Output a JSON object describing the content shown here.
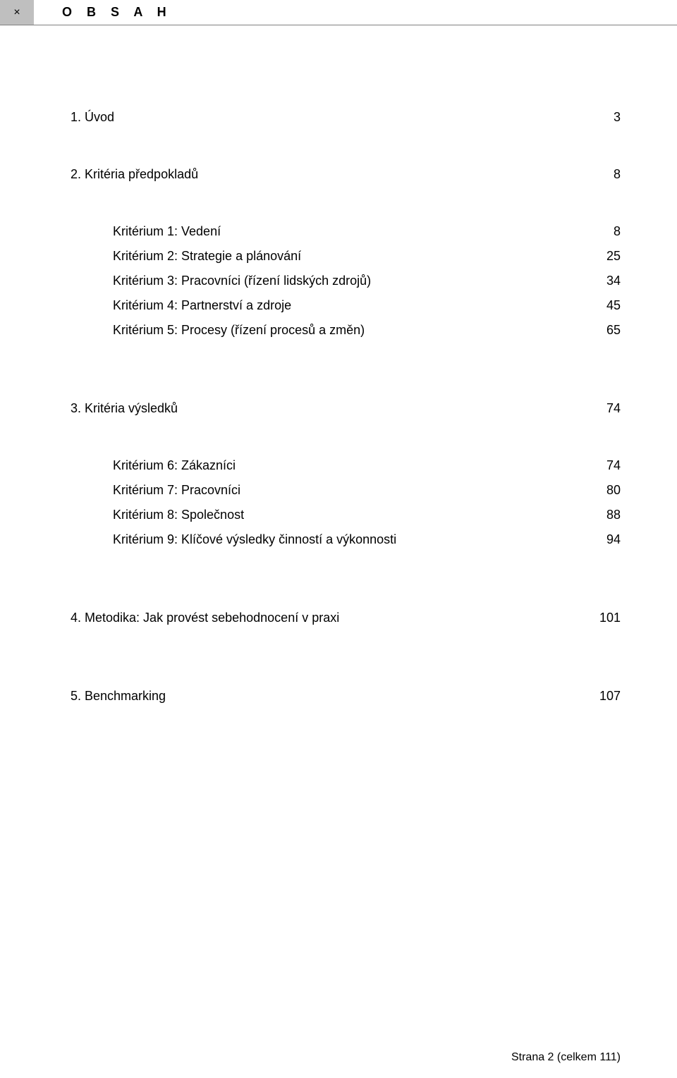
{
  "header": {
    "close_glyph": "×",
    "title": "O B S A H"
  },
  "sections": [
    {
      "label": "1.  Úvod",
      "page": "3"
    },
    {
      "label": "2.  Kritéria předpokladů",
      "page": "8",
      "items": [
        {
          "label": "Kritérium 1: Vedení",
          "page": "8"
        },
        {
          "label": "Kritérium 2: Strategie a plánování",
          "page": "25"
        },
        {
          "label": "Kritérium 3: Pracovníci (řízení lidských zdrojů)",
          "page": "34"
        },
        {
          "label": "Kritérium 4: Partnerství a zdroje",
          "page": "45"
        },
        {
          "label": "Kritérium 5: Procesy (řízení procesů a změn)",
          "page": "65"
        }
      ]
    },
    {
      "label": "3.  Kritéria výsledků",
      "page": "74",
      "items": [
        {
          "label": "Kritérium 6: Zákazníci",
          "page": "74"
        },
        {
          "label": "Kritérium 7: Pracovníci",
          "page": "80"
        },
        {
          "label": "Kritérium 8: Společnost",
          "page": "88"
        },
        {
          "label": "Kritérium 9: Klíčové výsledky činností a výkonnosti",
          "page": "94"
        }
      ]
    },
    {
      "label": "4.  Metodika: Jak provést sebehodnocení v praxi",
      "page": "101"
    },
    {
      "label": "5.  Benchmarking",
      "page": "107"
    }
  ],
  "footer": "Strana 2 (celkem 111)"
}
